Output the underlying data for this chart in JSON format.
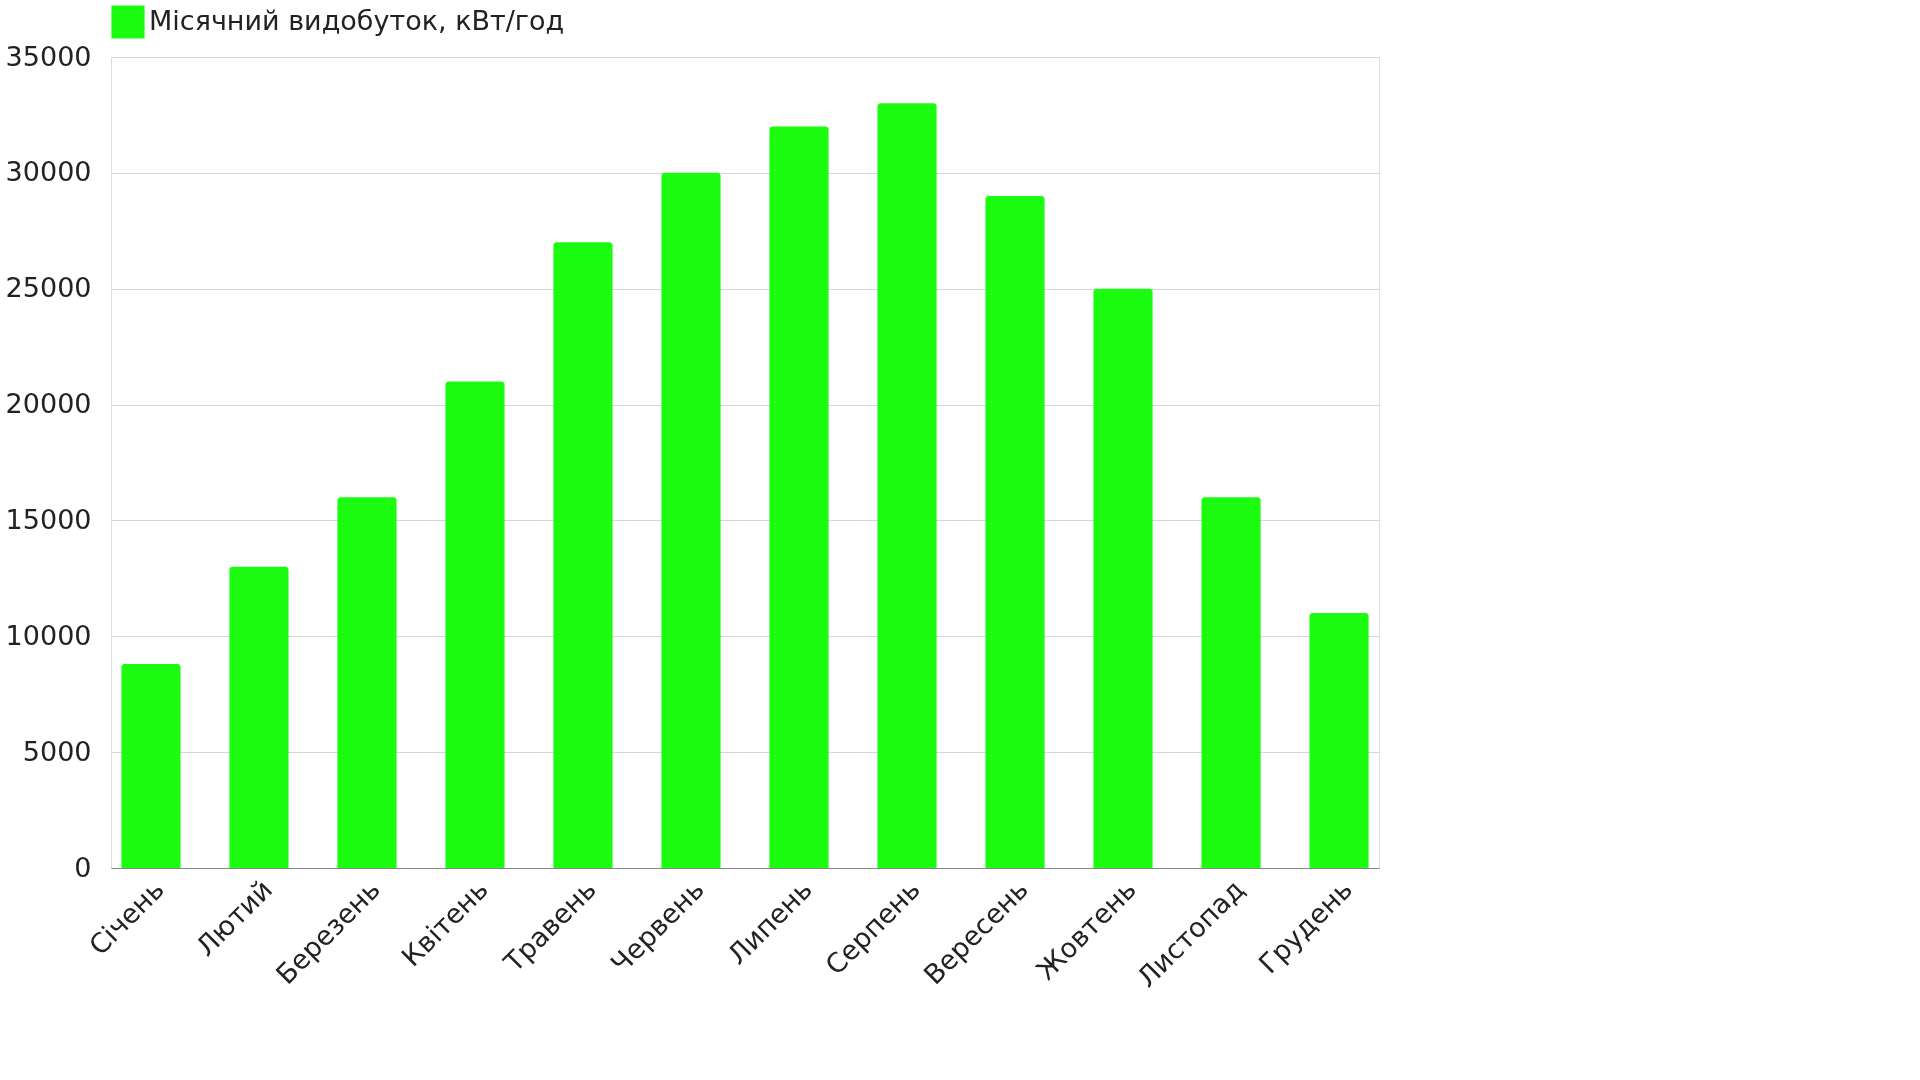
{
  "chart_data": {
    "type": "bar",
    "categories": [
      "Січень",
      "Лютий",
      "Березень",
      "Квітень",
      "Травень",
      "Червень",
      "Липень",
      "Серпень",
      "Вересень",
      "Жовтень",
      "Листопад",
      "Грудень"
    ],
    "series": [
      {
        "name": "Місячний видобуток, кВт/год",
        "color": "#1cfc10",
        "values": [
          8800,
          13000,
          16000,
          21000,
          27000,
          30000,
          32000,
          33000,
          29000,
          25000,
          16000,
          11000
        ]
      }
    ],
    "ylim": [
      0,
      35000
    ],
    "yticks": [
      0,
      5000,
      10000,
      15000,
      20000,
      25000,
      30000,
      35000
    ],
    "grid": "y",
    "legend": "top"
  }
}
